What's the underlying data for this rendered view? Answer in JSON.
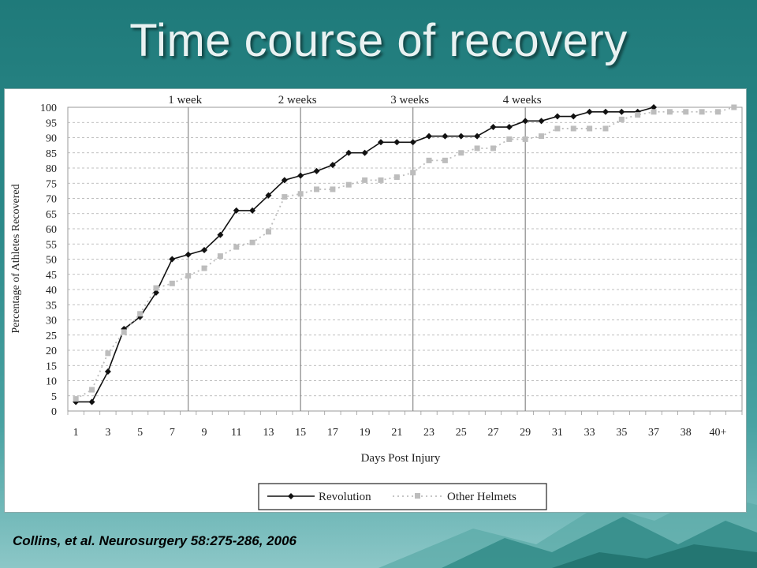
{
  "slide": {
    "title": "Time course of recovery",
    "citation": "Collins, et al. Neurosurgery 58:275-286, 2006"
  },
  "chart_data": {
    "type": "line",
    "xlabel": "Days Post Injury",
    "ylabel": "Percentage of Athletes Recovered",
    "ylim": [
      0,
      100
    ],
    "y_ticks": [
      0,
      5,
      10,
      15,
      20,
      25,
      30,
      35,
      40,
      45,
      50,
      55,
      60,
      65,
      70,
      75,
      80,
      85,
      90,
      95,
      100
    ],
    "x_tick_labels": [
      "1",
      "3",
      "5",
      "7",
      "9",
      "11",
      "13",
      "15",
      "17",
      "19",
      "21",
      "23",
      "25",
      "27",
      "29",
      "31",
      "33",
      "35",
      "37",
      "38",
      "40+"
    ],
    "x_positions": 42,
    "week_markers": [
      {
        "label": "1 week",
        "after_position": 7.5
      },
      {
        "label": "2 weeks",
        "after_position": 14.5
      },
      {
        "label": "3 weeks",
        "after_position": 21.5
      },
      {
        "label": "4 weeks",
        "after_position": 28.5
      }
    ],
    "grid": "horizontal dashed",
    "legend_position": "bottom",
    "series": [
      {
        "name": "Revolution",
        "color": "#111111",
        "style": "solid",
        "marker": "diamond",
        "values": [
          3,
          3,
          13,
          27,
          31,
          39,
          50,
          51.5,
          53,
          58,
          66,
          66,
          71,
          76,
          77.5,
          79,
          81,
          85,
          85,
          88.5,
          88.5,
          88.5,
          90.5,
          90.5,
          90.5,
          90.5,
          93.5,
          93.5,
          95.5,
          95.5,
          97,
          97,
          98.5,
          98.5,
          98.5,
          98.5,
          100
        ]
      },
      {
        "name": "Other Helmets",
        "color": "#bdbdbd",
        "style": "dotted",
        "marker": "square",
        "values": [
          4,
          7,
          19,
          26,
          32,
          40.5,
          42,
          44.5,
          47,
          51,
          54,
          55.5,
          59,
          70.5,
          71.5,
          73,
          73,
          74.5,
          76,
          76,
          77,
          78.5,
          82.5,
          82.5,
          85,
          86.5,
          86.5,
          89.5,
          89.5,
          90.5,
          93,
          93,
          93,
          93,
          96,
          97.5,
          98.5,
          98.5,
          98.5,
          98.5,
          98.5,
          100
        ]
      }
    ]
  }
}
